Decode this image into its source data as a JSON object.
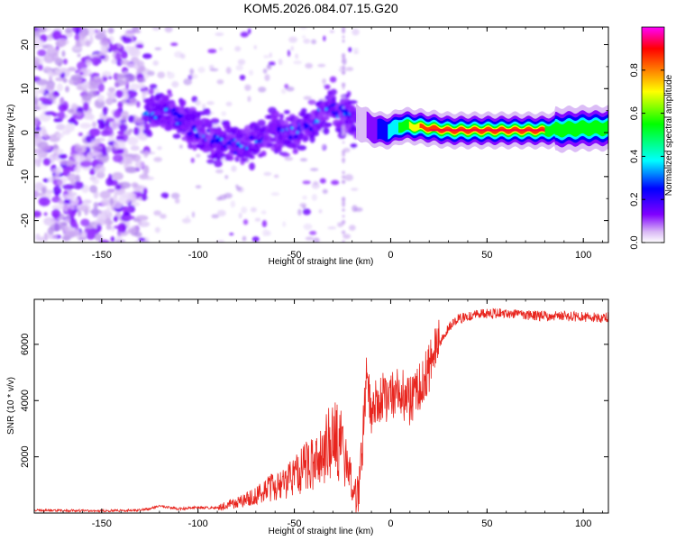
{
  "title": "KOM5.2026.084.07.15.G20",
  "chart_data": [
    {
      "type": "heatmap",
      "name": "Frequency vs height spectrogram",
      "xlabel": "Height of straight line (km)",
      "ylabel": "Frequency (Hz)",
      "xlim": [
        -185,
        113
      ],
      "ylim": [
        -25,
        24
      ],
      "xticks": [
        -150,
        -100,
        -50,
        0,
        50,
        100
      ],
      "xtick_labels": [
        "-150",
        "-100",
        "-50",
        "0",
        "50",
        "100"
      ],
      "yticks": [
        -20,
        -10,
        0,
        10,
        20
      ],
      "ytick_labels": [
        "-20",
        "-10",
        "0",
        "10",
        "20"
      ],
      "ridge": {
        "x": [
          -125,
          -115,
          -110,
          -100,
          -90,
          -80,
          -70,
          -60,
          -50,
          -40,
          -30,
          -20,
          -15,
          -10,
          -5,
          0,
          5,
          10,
          20,
          30,
          50,
          80,
          100,
          113
        ],
        "y": [
          4,
          5,
          3,
          0,
          -2,
          -3,
          -2,
          0,
          0,
          2,
          6,
          3,
          2,
          1,
          0.5,
          0.5,
          1.5,
          1.5,
          1,
          0.5,
          0.5,
          0.5,
          1,
          1
        ]
      },
      "colorbar": {
        "label": "Normalized spectral amplitude",
        "range": [
          0,
          1
        ],
        "ticks": [
          0.0,
          0.2,
          0.4,
          0.6,
          0.8
        ],
        "tick_labels": [
          "0.0",
          "0.2",
          "0.4",
          "0.6",
          "0.8"
        ],
        "colors": [
          "#ffffff",
          "#d9b8f5",
          "#8000ff",
          "#0000ff",
          "#00ffff",
          "#00ff00",
          "#ffff00",
          "#ff8000",
          "#ff0000",
          "#ff00ff"
        ]
      }
    },
    {
      "type": "line",
      "name": "SNR vs height",
      "xlabel": "Height of straight line (km)",
      "ylabel": "SNR (10 * v/v)",
      "xlim": [
        -185,
        113
      ],
      "ylim": [
        0,
        7600
      ],
      "xticks": [
        -150,
        -100,
        -50,
        0,
        50,
        100
      ],
      "xtick_labels": [
        "-150",
        "-100",
        "-50",
        "0",
        "50",
        "100"
      ],
      "yticks": [
        2000,
        4000,
        6000
      ],
      "ytick_labels": [
        "2000",
        "4000",
        "6000"
      ],
      "color": "#e8251e",
      "series": [
        {
          "name": "SNR",
          "x": [
            -185,
            -170,
            -150,
            -130,
            -125,
            -120,
            -115,
            -110,
            -100,
            -90,
            -85,
            -80,
            -75,
            -70,
            -65,
            -60,
            -55,
            -50,
            -45,
            -40,
            -35,
            -30,
            -25,
            -20,
            -17,
            -15,
            -13,
            -12,
            -10,
            -8,
            -5,
            0,
            5,
            10,
            15,
            20,
            25,
            30,
            35,
            40,
            50,
            60,
            70,
            80,
            90,
            100,
            113
          ],
          "y": [
            100,
            90,
            80,
            100,
            150,
            250,
            200,
            150,
            200,
            180,
            300,
            350,
            500,
            600,
            800,
            1000,
            1100,
            1300,
            1600,
            1800,
            2200,
            2600,
            2400,
            1000,
            400,
            2000,
            4500,
            5200,
            3000,
            3800,
            4100,
            4100,
            4300,
            4000,
            4500,
            5200,
            6000,
            6600,
            6900,
            7000,
            7100,
            7100,
            7050,
            7000,
            7000,
            6980,
            6950
          ]
        }
      ]
    }
  ]
}
